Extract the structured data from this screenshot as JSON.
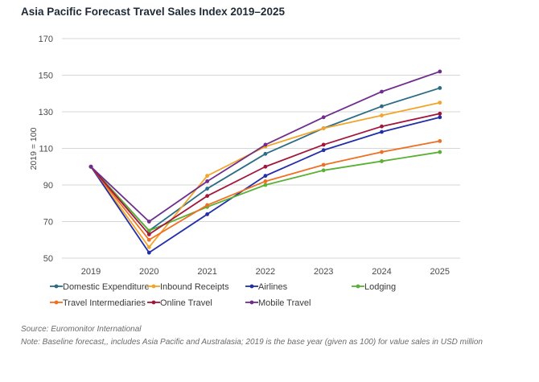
{
  "chart_data": {
    "type": "line",
    "title": "Asia Pacific Forecast Travel Sales Index 2019–2025",
    "xlabel": "",
    "ylabel": "2019 = 100",
    "x": [
      "2019",
      "2020",
      "2021",
      "2022",
      "2023",
      "2024",
      "2025"
    ],
    "ylim": [
      50,
      170
    ],
    "yticks": [
      50,
      70,
      90,
      110,
      130,
      150,
      170
    ],
    "grid": true,
    "legend_position": "bottom",
    "series": [
      {
        "name": "Domestic Expenditure",
        "color": "#2b6c86",
        "values": [
          100,
          65,
          88,
          107,
          121,
          133,
          143
        ]
      },
      {
        "name": "Inbound Receipts",
        "color": "#f2a52a",
        "values": [
          100,
          56,
          95,
          111,
          121,
          128,
          135
        ]
      },
      {
        "name": "Airlines",
        "color": "#232fa8",
        "values": [
          100,
          53,
          74,
          95,
          109,
          119,
          127
        ]
      },
      {
        "name": "Lodging",
        "color": "#5bb136",
        "values": [
          100,
          65,
          78,
          90,
          98,
          103,
          108
        ]
      },
      {
        "name": "Travel Intermediaries",
        "color": "#f06f22",
        "values": [
          100,
          60,
          79,
          92,
          101,
          108,
          114
        ]
      },
      {
        "name": "Online Travel",
        "color": "#a3163c",
        "values": [
          100,
          63,
          84,
          100,
          112,
          122,
          129
        ]
      },
      {
        "name": "Mobile Travel",
        "color": "#6f2e8c",
        "values": [
          100,
          70,
          92,
          112,
          127,
          141,
          152
        ]
      }
    ]
  },
  "footer": {
    "source": "Source: Euromonitor International",
    "note": "Note: Baseline forecast,, includes Asia Pacific and Australasia; 2019 is the base year (given as 100) for value sales in USD million"
  }
}
